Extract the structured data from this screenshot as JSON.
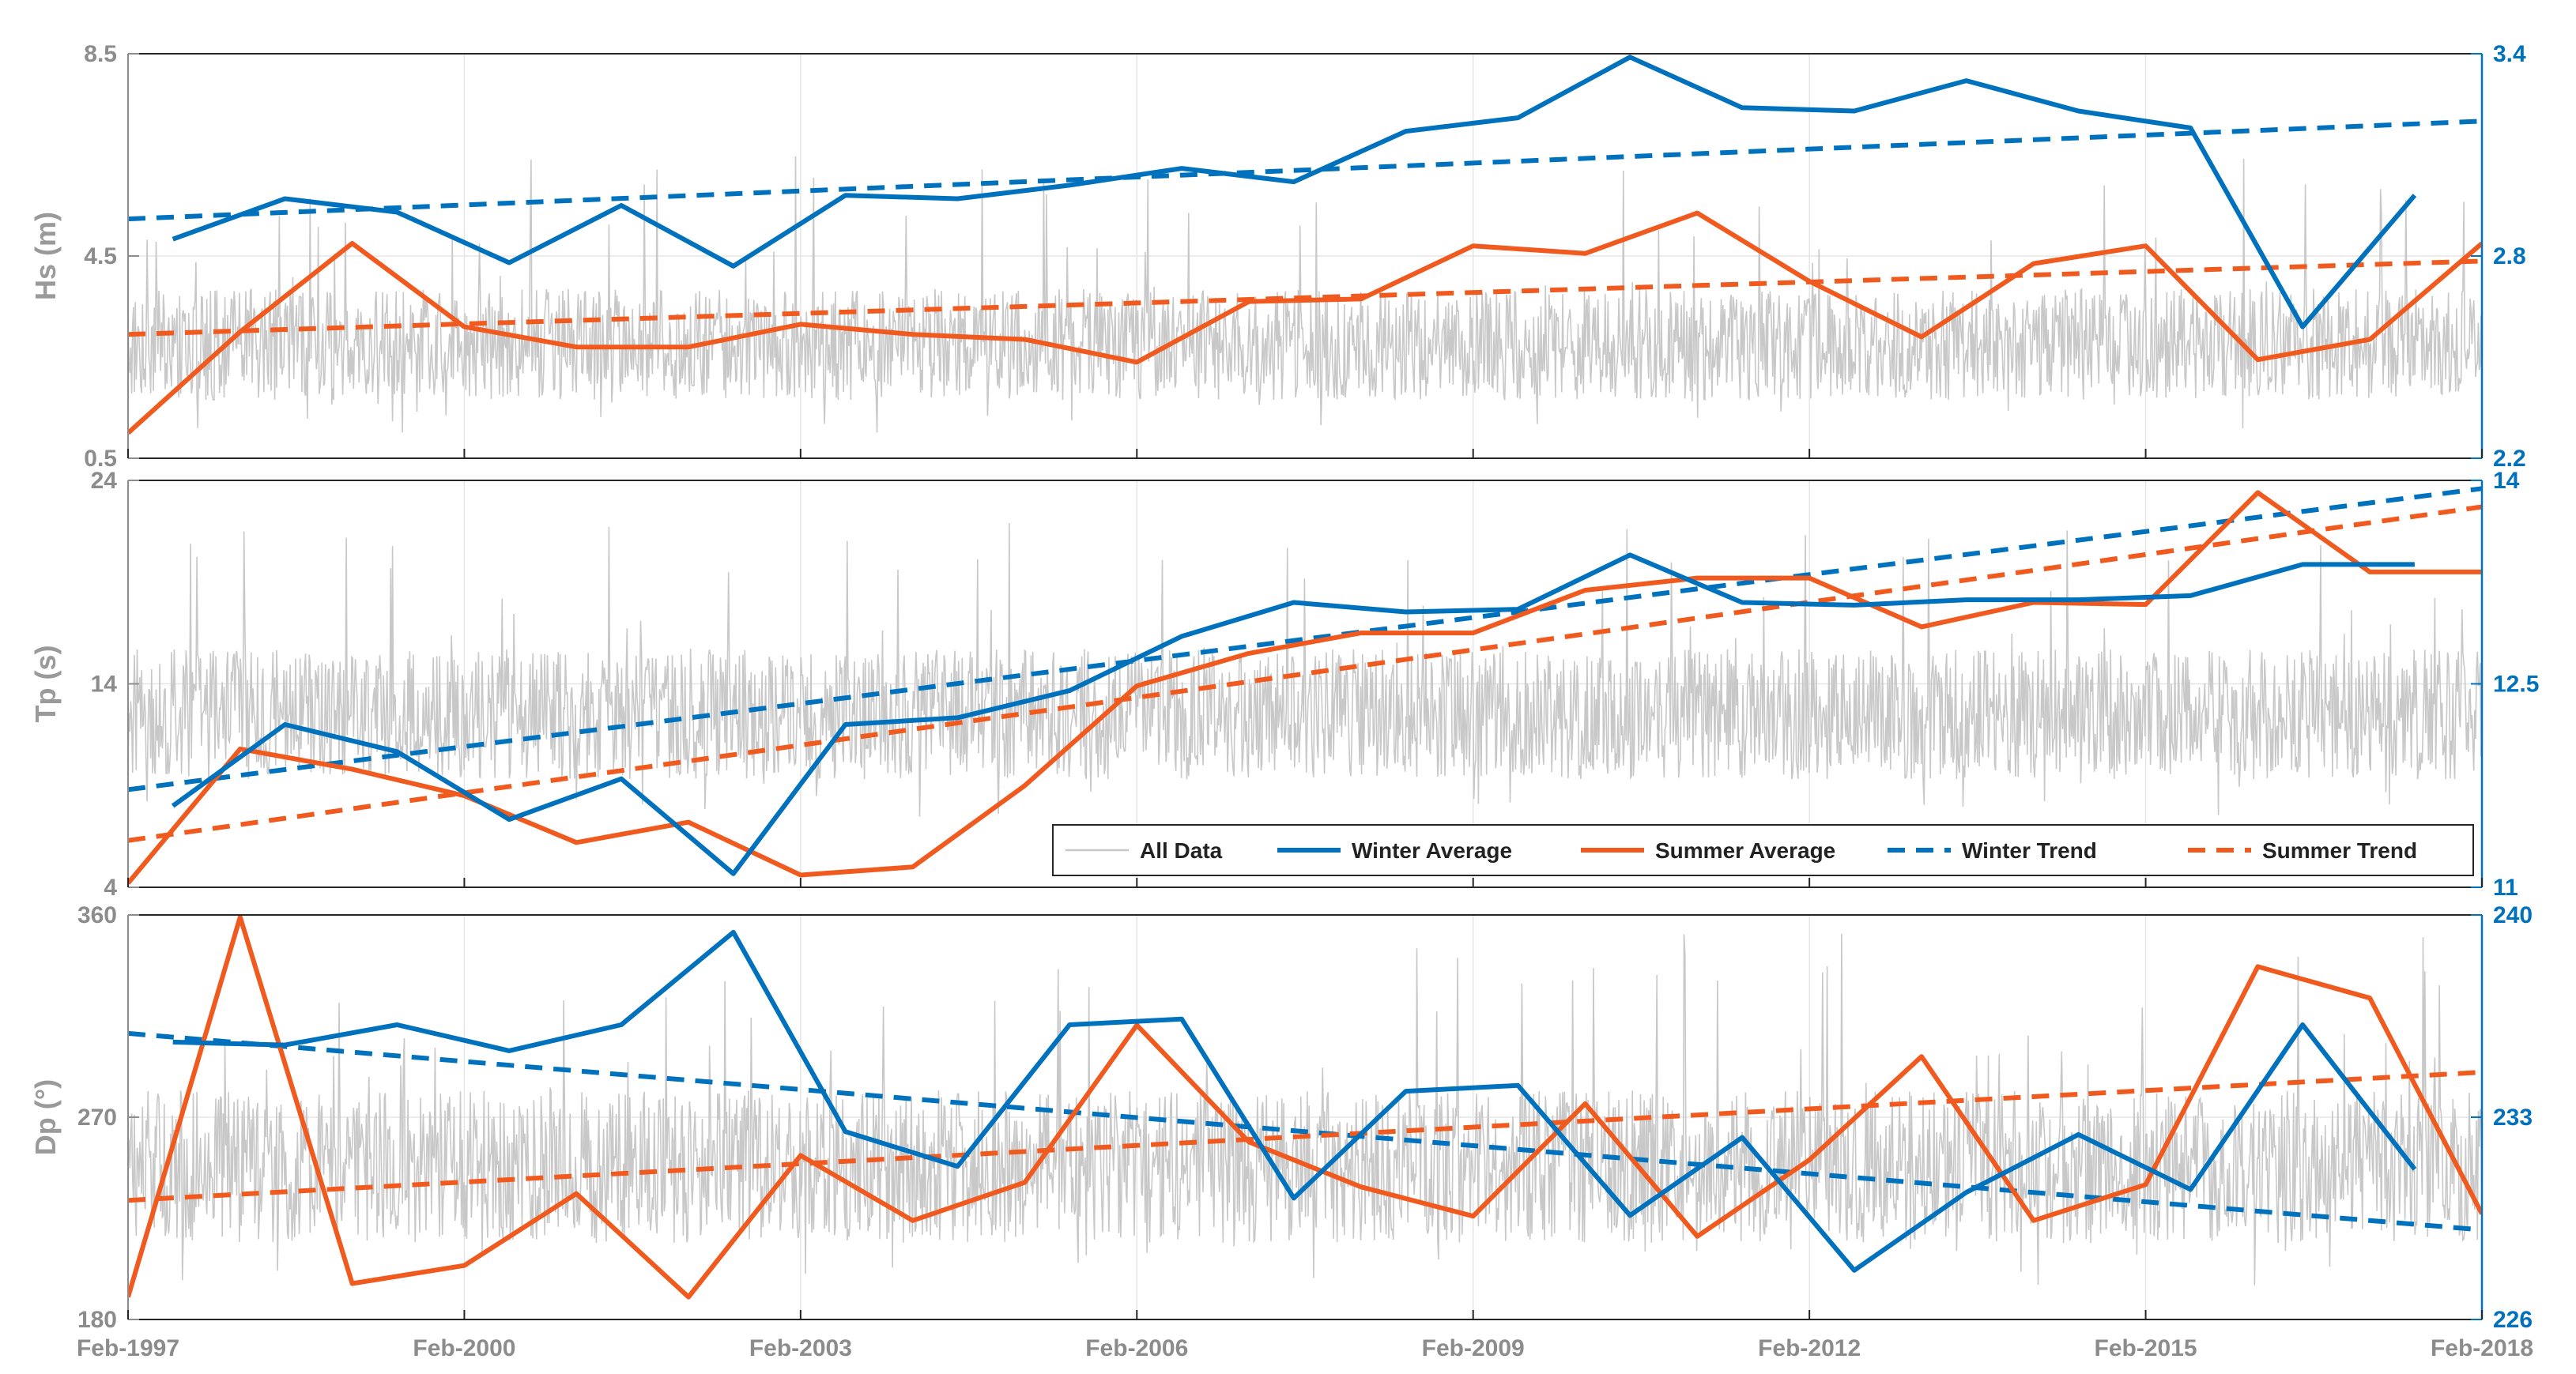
{
  "chart_data": {
    "type": "line",
    "layout": "three stacked panels sharing x-axis, dual y-axes",
    "colors": {
      "all_data": "#c8c8c8",
      "winter": "#0072BD",
      "summer": "#F05A1E",
      "left_axis": "#8c8c8c",
      "right_axis": "#0072BD",
      "grid": "#e6e6e6"
    },
    "x_axis": {
      "range": [
        1997.1,
        2018.1
      ],
      "ticks": [
        1997.1,
        2000.1,
        2003.1,
        2006.1,
        2009.1,
        2012.1,
        2015.1,
        2018.1
      ],
      "tick_labels": [
        "Feb-1997",
        "Feb-2000",
        "Feb-2003",
        "Feb-2006",
        "Feb-2009",
        "Feb-2012",
        "Feb-2015",
        "Feb-2018"
      ]
    },
    "legend": {
      "placement": "bottom-right of middle panel",
      "entries": [
        "All Data",
        "Winter Average",
        "Summer Average",
        "Winter Trend",
        "Summer Trend"
      ]
    },
    "panels": [
      {
        "id": "hs",
        "ylabel": "Hs (m)",
        "ylim": [
          0.5,
          8.5
        ],
        "yticks": [
          0.5,
          4.5,
          8.5
        ],
        "y2lim": [
          2.2,
          3.4
        ],
        "y2ticks": [
          2.2,
          2.8,
          3.4
        ],
        "all_data": {
          "mean": 2.75,
          "spread": 1.1,
          "spike_max": 6.5
        },
        "series": [
          {
            "name": "Winter Average",
            "axis": "right",
            "style": "solid",
            "x": [
              1997.5,
              1998.5,
              1999.5,
              2000.5,
              2001.5,
              2002.5,
              2003.5,
              2004.5,
              2005.5,
              2006.5,
              2007.5,
              2008.5,
              2009.5,
              2010.5,
              2011.5,
              2012.5,
              2013.5,
              2014.5,
              2015.5,
              2016.5,
              2017.5
            ],
            "values": [
              2.85,
              2.97,
              2.93,
              2.78,
              2.95,
              2.77,
              2.98,
              2.97,
              3.01,
              3.06,
              3.02,
              3.17,
              3.21,
              3.39,
              3.24,
              3.23,
              3.32,
              3.23,
              3.18,
              2.59,
              2.98
            ]
          },
          {
            "name": "Summer Average",
            "axis": "left",
            "style": "solid",
            "x": [
              1997.1,
              1998.1,
              1999.1,
              2000.1,
              2001.1,
              2002.1,
              2003.1,
              2004.1,
              2005.1,
              2006.1,
              2007.1,
              2008.1,
              2009.1,
              2010.1,
              2011.1,
              2012.1,
              2013.1,
              2014.1,
              2015.1,
              2016.1,
              2017.1,
              2018.1
            ],
            "values": [
              1.0,
              3.0,
              4.75,
              3.1,
              2.7,
              2.7,
              3.15,
              2.95,
              2.85,
              2.4,
              3.6,
              3.65,
              4.7,
              4.55,
              5.35,
              4.0,
              2.9,
              4.35,
              4.7,
              2.45,
              2.85,
              4.75
            ]
          },
          {
            "name": "Winter Trend",
            "axis": "right",
            "style": "dashed",
            "x": [
              1997.1,
              2018.1
            ],
            "values": [
              2.91,
              3.2
            ]
          },
          {
            "name": "Summer Trend",
            "axis": "left",
            "style": "dashed",
            "x": [
              1997.1,
              2018.1
            ],
            "values": [
              2.95,
              4.4
            ]
          }
        ]
      },
      {
        "id": "tp",
        "ylabel": "Tp (s)",
        "ylim": [
          4,
          24
        ],
        "yticks": [
          4,
          14,
          24
        ],
        "y2lim": [
          11,
          14
        ],
        "y2ticks": [
          11,
          12.5,
          14
        ],
        "all_data": {
          "mean": 12.5,
          "spread": 3.2,
          "spike_max": 22
        },
        "series": [
          {
            "name": "Winter Average",
            "axis": "right",
            "style": "solid",
            "x": [
              1997.5,
              1998.5,
              1999.5,
              2000.5,
              2001.5,
              2002.5,
              2003.5,
              2004.5,
              2005.5,
              2006.5,
              2007.5,
              2008.5,
              2009.5,
              2010.5,
              2011.5,
              2012.5,
              2013.5,
              2014.5,
              2015.5,
              2016.5,
              2017.5
            ],
            "values": [
              11.6,
              12.2,
              12.0,
              11.5,
              11.8,
              11.1,
              12.2,
              12.25,
              12.45,
              12.85,
              13.1,
              13.03,
              13.05,
              13.45,
              13.1,
              13.08,
              13.12,
              13.12,
              13.15,
              13.38,
              13.38
            ]
          },
          {
            "name": "Summer Average",
            "axis": "left",
            "style": "solid",
            "x": [
              1997.1,
              1998.1,
              1999.1,
              2000.1,
              2001.1,
              2002.1,
              2003.1,
              2004.1,
              2005.1,
              2006.1,
              2007.1,
              2008.1,
              2009.1,
              2010.1,
              2011.1,
              2012.1,
              2013.1,
              2014.1,
              2015.1,
              2016.1,
              2017.1,
              2018.1
            ],
            "values": [
              4.2,
              10.8,
              9.8,
              8.5,
              6.2,
              7.2,
              4.6,
              5.0,
              9.0,
              13.9,
              15.5,
              16.5,
              16.5,
              18.6,
              19.2,
              19.2,
              16.8,
              18.0,
              17.9,
              23.4,
              19.5,
              19.5
            ]
          },
          {
            "name": "Winter Trend",
            "axis": "right",
            "style": "dashed",
            "x": [
              1997.1,
              2018.1
            ],
            "values": [
              11.72,
              13.94
            ]
          },
          {
            "name": "Summer Trend",
            "axis": "left",
            "style": "dashed",
            "x": [
              1997.1,
              2018.1
            ],
            "values": [
              6.3,
              22.7
            ]
          }
        ]
      },
      {
        "id": "dp",
        "ylabel": "Dp (°)",
        "ylim": [
          180,
          360
        ],
        "yticks": [
          180,
          270,
          360
        ],
        "y2lim": [
          226,
          240
        ],
        "y2ticks": [
          226,
          233,
          240
        ],
        "all_data": {
          "mean": 248,
          "spread": 34,
          "spike_max": 355
        },
        "series": [
          {
            "name": "Winter Average",
            "axis": "right",
            "style": "solid",
            "x": [
              1997.5,
              1998.5,
              1999.5,
              2000.5,
              2001.5,
              2002.5,
              2003.5,
              2004.5,
              2005.5,
              2006.5,
              2007.5,
              2008.5,
              2009.5,
              2010.5,
              2011.5,
              2012.5,
              2013.5,
              2014.5,
              2015.5,
              2016.5,
              2017.5
            ],
            "values": [
              235.6,
              235.5,
              236.2,
              235.3,
              236.2,
              239.4,
              232.5,
              231.3,
              236.2,
              236.4,
              230.2,
              233.9,
              234.1,
              229.6,
              232.3,
              227.7,
              230.4,
              232.4,
              230.5,
              236.2,
              231.2
            ]
          },
          {
            "name": "Summer Average",
            "axis": "left",
            "style": "solid",
            "x": [
              1997.1,
              1998.1,
              1999.1,
              2000.1,
              2001.1,
              2002.1,
              2003.1,
              2004.1,
              2005.1,
              2006.1,
              2007.1,
              2008.1,
              2009.1,
              2010.1,
              2011.1,
              2012.1,
              2013.1,
              2014.1,
              2015.1,
              2016.1,
              2017.1,
              2018.1
            ],
            "values": [
              190,
              359,
              196,
              204,
              236,
              190,
              253,
              224,
              241,
              311,
              259,
              239,
              226,
              276,
              217,
              251,
              297,
              224,
              240,
              337,
              323,
              227
            ]
          },
          {
            "name": "Winter Trend",
            "axis": "right",
            "style": "dashed",
            "x": [
              1997.1,
              2018.1
            ],
            "values": [
              235.9,
              229.1
            ]
          },
          {
            "name": "Summer Trend",
            "axis": "left",
            "style": "dashed",
            "x": [
              1997.1,
              2018.1
            ],
            "values": [
              233,
              290
            ]
          }
        ]
      }
    ]
  }
}
